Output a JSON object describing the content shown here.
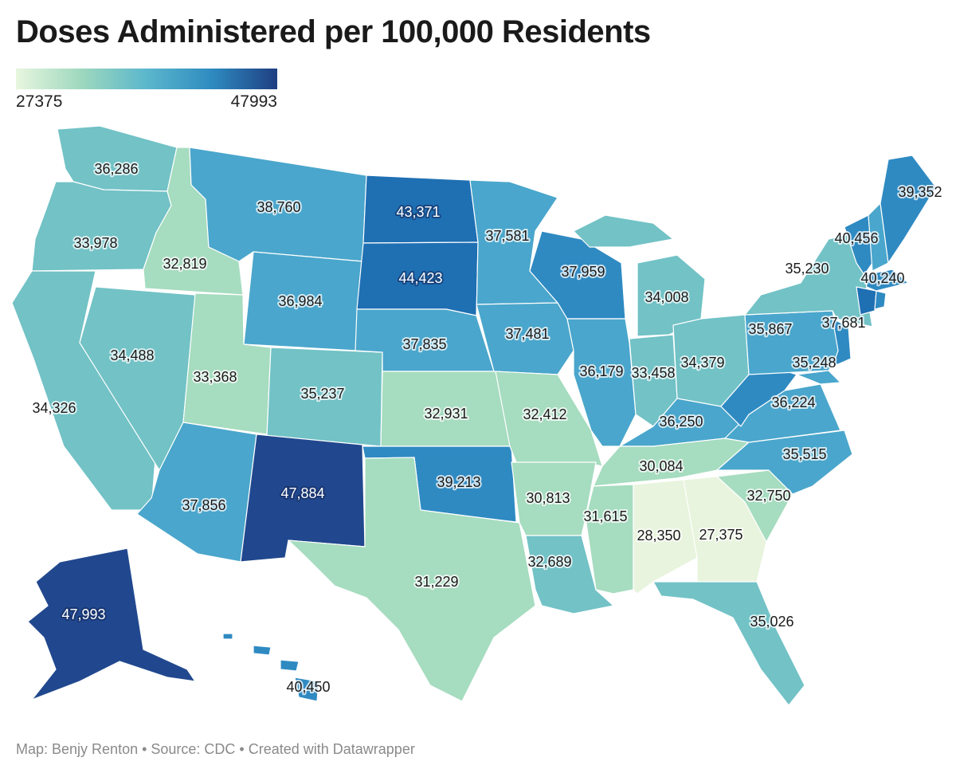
{
  "title": "Doses Administered per 100,000 Residents",
  "legend": {
    "min": "27375",
    "max": "47993"
  },
  "footer": "Map: Benjy Renton • Source: CDC • Created with Datawrapper",
  "colors": {
    "c1": "#e8f4dd",
    "c2": "#a6dcbf",
    "c3": "#72c2c6",
    "c4": "#4aa6cc",
    "c5": "#2f8ac2",
    "c6": "#1f6fb3",
    "c7": "#21488e"
  },
  "states": {
    "WA": "36,286",
    "OR": "33,978",
    "CA": "34,326",
    "ID": "32,819",
    "NV": "34,488",
    "MT": "38,760",
    "WY": "36,984",
    "UT": "33,368",
    "AZ": "37,856",
    "CO": "35,237",
    "NM": "47,884",
    "ND": "43,371",
    "SD": "44,423",
    "NE": "37,835",
    "KS": "32,931",
    "OK": "39,213",
    "TX": "31,229",
    "MN": "37,581",
    "IA": "37,481",
    "MO": "32,412",
    "AR": "30,813",
    "LA": "32,689",
    "WI": "37,959",
    "IL": "36,179",
    "MI": "34,008",
    "IN": "33,458",
    "OH": "34,379",
    "KY": "36,250",
    "TN": "30,084",
    "MS": "31,615",
    "AL": "28,350",
    "GA": "27,375",
    "FL": "35,026",
    "SC": "32,750",
    "NC": "35,515",
    "VA": "36,224",
    "WV": "35,248",
    "PA": "35,867",
    "NY": "35,230",
    "NJ": "37,681",
    "VT": "40,456",
    "ME": "39,352",
    "MA": "40,240",
    "AK": "47,993",
    "HI": "40,450"
  }
}
